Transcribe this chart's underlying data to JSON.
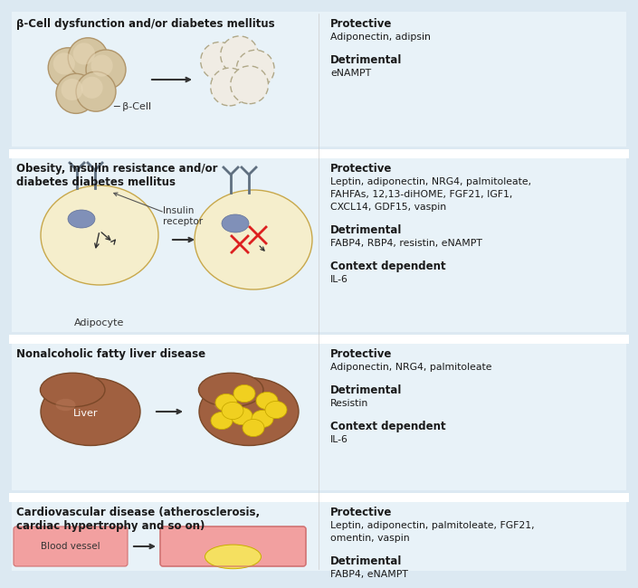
{
  "bg_color": "#dce9f2",
  "section_bg": "#e8f2f8",
  "divider_color": "#ffffff",
  "text_color": "#1a1a1a",
  "sections": [
    {
      "title": "β-Cell dysfunction and/or diabetes mellitus",
      "title_bold": true,
      "protective_label": "Protective",
      "protective_text": "Adiponectin, adipsin",
      "detrimental_label": "Detrimental",
      "detrimental_text": "eNAMPT",
      "context_label": "",
      "context_text": ""
    },
    {
      "title": "Obesity, insulin resistance and/or\ndiabetes diabetes mellitus",
      "title_bold": true,
      "protective_label": "Protective",
      "protective_text": "Leptin, adiponectin, NRG4, palmitoleate,\nFAHFAs, 12,13-diHOME, FGF21, IGF1,\nCXCL14, GDF15, vaspin",
      "detrimental_label": "Detrimental",
      "detrimental_text": "FABP4, RBP4, resistin, eNAMPT",
      "context_label": "Context dependent",
      "context_text": "IL-6"
    },
    {
      "title": "Nonalcoholic fatty liver disease",
      "title_bold": true,
      "protective_label": "Protective",
      "protective_text": "Adiponectin, NRG4, palmitoleate",
      "detrimental_label": "Detrimental",
      "detrimental_text": "Resistin",
      "context_label": "Context dependent",
      "context_text": "IL-6"
    },
    {
      "title": "Cardiovascular disease (atherosclerosis,\ncardiac hypertrophy and so on)",
      "title_bold": true,
      "protective_label": "Protective",
      "protective_text": "Leptin, adiponectin, palmitoleate, FGF21,\nomentin, vaspin",
      "detrimental_label": "Detrimental",
      "detrimental_text": "FABP4, eNAMPT",
      "context_label": "",
      "context_text": ""
    }
  ],
  "cell_color_fill": "#d4c4a0",
  "cell_color_edge": "#b0956a",
  "cell_ghost_fill": "#f0ece4",
  "cell_ghost_edge": "#b0a888",
  "adipocyte_fill": "#f5eecc",
  "adipocyte_edge": "#c8a84b",
  "nucleus_fill": "#8090b8",
  "nucleus_edge": "#607098",
  "receptor_color": "#607080",
  "liver_fill": "#a06040",
  "liver_edge": "#7a4828",
  "lipid_fill": "#f0d020",
  "lipid_edge": "#c8a800",
  "vessel_fill": "#f2a0a0",
  "vessel_edge": "#d07070",
  "plaque_fill": "#f5e060",
  "plaque_edge": "#c8b000",
  "arrow_color": "#333333",
  "red_x_color": "#dd2020"
}
